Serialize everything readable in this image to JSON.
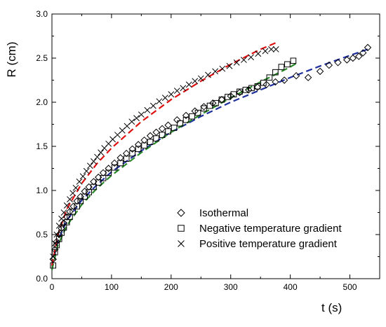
{
  "chart_data": {
    "type": "scatter",
    "title": "",
    "xlabel": "t (s)",
    "ylabel": "R (cm)",
    "xlim": [
      0,
      550
    ],
    "ylim": [
      0,
      3.0
    ],
    "xticks": [
      0,
      100,
      200,
      300,
      400,
      500
    ],
    "yticks": [
      0.0,
      0.5,
      1.0,
      1.5,
      2.0,
      2.5,
      3.0
    ],
    "xtick_labels": [
      "0",
      "100",
      "200",
      "300",
      "400",
      "500"
    ],
    "ytick_labels": [
      "0.0",
      "0.5",
      "1.0",
      "1.5",
      "2.0",
      "2.5",
      "3.0"
    ],
    "grid": false,
    "legend_position": "bottom-right",
    "series": [
      {
        "name": "Isothermal",
        "marker": "diamond",
        "marker_color": "#000000",
        "fit_line_color": "#1f2f9e",
        "fit_line_style": "dashed",
        "x": [
          2,
          5,
          8,
          12,
          16,
          20,
          25,
          30,
          36,
          42,
          48,
          55,
          62,
          70,
          78,
          86,
          95,
          105,
          115,
          125,
          135,
          145,
          155,
          165,
          175,
          185,
          195,
          210,
          225,
          240,
          255,
          270,
          285,
          300,
          315,
          330,
          345,
          360,
          375,
          390,
          410,
          430,
          450,
          465,
          480,
          495,
          505,
          515,
          522,
          530
        ],
        "y": [
          0.22,
          0.33,
          0.42,
          0.5,
          0.57,
          0.63,
          0.7,
          0.76,
          0.82,
          0.88,
          0.93,
          0.99,
          1.04,
          1.1,
          1.15,
          1.2,
          1.25,
          1.31,
          1.37,
          1.42,
          1.47,
          1.52,
          1.57,
          1.62,
          1.66,
          1.7,
          1.74,
          1.8,
          1.85,
          1.9,
          1.95,
          1.99,
          2.03,
          2.07,
          2.11,
          2.14,
          2.17,
          2.2,
          2.23,
          2.25,
          2.3,
          2.28,
          2.35,
          2.42,
          2.45,
          2.48,
          2.5,
          2.52,
          2.56,
          2.62
        ],
        "fit_x": [
          0,
          10,
          25,
          50,
          75,
          100,
          150,
          200,
          250,
          300,
          350,
          400,
          450,
          500,
          530
        ],
        "fit_y": [
          0.15,
          0.43,
          0.66,
          0.89,
          1.06,
          1.21,
          1.45,
          1.66,
          1.84,
          2.0,
          2.14,
          2.28,
          2.41,
          2.53,
          2.6
        ]
      },
      {
        "name": "Negative temperature gradient",
        "marker": "square",
        "marker_color": "#000000",
        "fit_line_color": "#2a8a2a",
        "fit_line_style": "dashed",
        "x": [
          2,
          5,
          8,
          12,
          16,
          20,
          25,
          30,
          35,
          42,
          48,
          55,
          62,
          70,
          78,
          86,
          95,
          105,
          115,
          125,
          135,
          145,
          155,
          165,
          175,
          185,
          195,
          205,
          215,
          225,
          235,
          245,
          255,
          265,
          275,
          285,
          295,
          305,
          315,
          325,
          335,
          345,
          355,
          365,
          375,
          385,
          395,
          405
        ],
        "y": [
          0.15,
          0.3,
          0.38,
          0.45,
          0.52,
          0.58,
          0.64,
          0.7,
          0.76,
          0.82,
          0.88,
          0.93,
          0.98,
          1.04,
          1.09,
          1.14,
          1.2,
          1.26,
          1.31,
          1.36,
          1.42,
          1.47,
          1.51,
          1.55,
          1.59,
          1.63,
          1.67,
          1.71,
          1.76,
          1.8,
          1.84,
          1.88,
          1.93,
          1.96,
          1.99,
          2.03,
          2.06,
          2.09,
          2.12,
          2.14,
          2.16,
          2.18,
          2.22,
          2.28,
          2.34,
          2.4,
          2.43,
          2.47
        ],
        "fit_x": [
          0,
          10,
          25,
          50,
          75,
          100,
          150,
          200,
          250,
          300,
          350,
          400,
          410
        ],
        "fit_y": [
          0.1,
          0.38,
          0.6,
          0.84,
          1.02,
          1.17,
          1.43,
          1.66,
          1.86,
          2.05,
          2.23,
          2.4,
          2.44
        ]
      },
      {
        "name": "Positive temperature gradient",
        "marker": "x",
        "marker_color": "#000000",
        "fit_line_color": "#e01010",
        "fit_line_style": "dashed",
        "x": [
          2,
          5,
          8,
          12,
          16,
          20,
          25,
          30,
          35,
          40,
          46,
          52,
          58,
          64,
          70,
          76,
          82,
          88,
          95,
          102,
          110,
          118,
          126,
          134,
          142,
          150,
          160,
          170,
          180,
          190,
          200,
          210,
          220,
          230,
          240,
          250,
          262,
          274,
          286,
          298,
          310,
          322,
          334,
          346,
          358,
          368,
          376
        ],
        "y": [
          0.25,
          0.4,
          0.5,
          0.6,
          0.68,
          0.75,
          0.83,
          0.9,
          0.97,
          1.03,
          1.1,
          1.16,
          1.22,
          1.28,
          1.33,
          1.38,
          1.43,
          1.48,
          1.53,
          1.58,
          1.63,
          1.68,
          1.73,
          1.78,
          1.82,
          1.86,
          1.91,
          1.96,
          2.01,
          2.05,
          2.09,
          2.13,
          2.16,
          2.2,
          2.24,
          2.27,
          2.31,
          2.35,
          2.38,
          2.41,
          2.45,
          2.48,
          2.51,
          2.55,
          2.58,
          2.6,
          2.6
        ],
        "fit_x": [
          0,
          10,
          25,
          50,
          75,
          100,
          150,
          200,
          250,
          300,
          350,
          378
        ],
        "fit_y": [
          0.15,
          0.5,
          0.79,
          1.08,
          1.3,
          1.48,
          1.78,
          2.03,
          2.24,
          2.43,
          2.6,
          2.68
        ]
      }
    ]
  }
}
